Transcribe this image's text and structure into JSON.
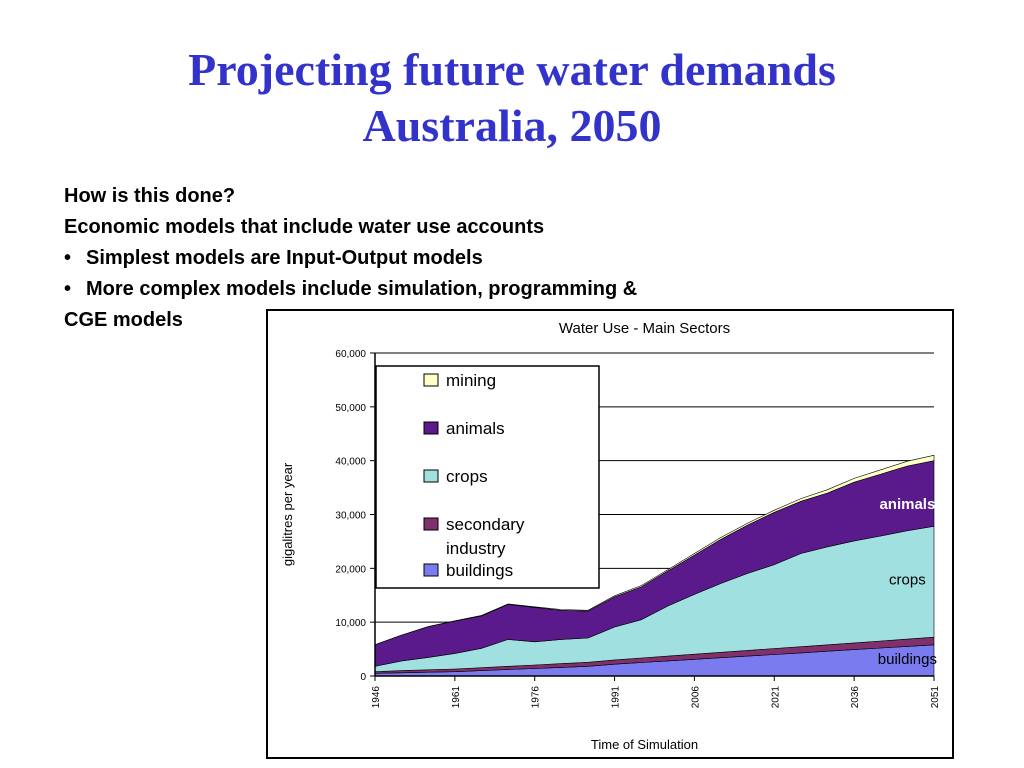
{
  "slide": {
    "title_line1": "Projecting future water demands",
    "title_line2": "Australia, 2050",
    "lines": [
      {
        "bullet": "",
        "text": "How is this done?"
      },
      {
        "bullet": "",
        "text": "Economic models that include water use accounts"
      },
      {
        "bullet": "•",
        "text": "Simplest models are Input-Output models"
      },
      {
        "bullet": "•",
        "text": "More complex models include simulation, programming &"
      },
      {
        "bullet": "",
        "text": "CGE models"
      }
    ]
  },
  "chart_data": {
    "type": "area",
    "stacked": true,
    "title": "Water Use - Main Sectors",
    "xlabel": "Time of Simulation",
    "ylabel": "gigalitres per year",
    "ylim": [
      0,
      60000
    ],
    "y_ticks": [
      "0",
      "10,000",
      "20,000",
      "30,000",
      "40,000",
      "50,000",
      "60,000"
    ],
    "x_ticks": [
      "1946",
      "1961",
      "1976",
      "1991",
      "2006",
      "2021",
      "2036",
      "2051"
    ],
    "x": [
      1946,
      1951,
      1956,
      1961,
      1966,
      1971,
      1976,
      1981,
      1986,
      1991,
      1996,
      2001,
      2006,
      2011,
      2016,
      2021,
      2026,
      2031,
      2036,
      2041,
      2046,
      2051
    ],
    "series": [
      {
        "name": "buildings",
        "color": "#7b7bf0",
        "values": [
          500,
          600,
          700,
          800,
          1000,
          1200,
          1400,
          1600,
          1800,
          2200,
          2500,
          2800,
          3100,
          3400,
          3700,
          4000,
          4300,
          4600,
          4900,
          5200,
          5500,
          5800
        ]
      },
      {
        "name": "secondary industry",
        "color": "#80306a",
        "values": [
          300,
          400,
          450,
          500,
          550,
          600,
          650,
          700,
          750,
          800,
          850,
          900,
          950,
          1000,
          1050,
          1100,
          1150,
          1200,
          1250,
          1300,
          1350,
          1400
        ]
      },
      {
        "name": "crops",
        "color": "#a0e0e0",
        "values": [
          1000,
          1800,
          2300,
          2900,
          3600,
          5000,
          4300,
          4500,
          4500,
          6100,
          7100,
          9300,
          11100,
          12800,
          14300,
          15600,
          17300,
          18200,
          18950,
          19500,
          20150,
          20600
        ]
      },
      {
        "name": "animals",
        "color": "#5a1a8c",
        "values": [
          4000,
          4800,
          5700,
          6000,
          6000,
          6500,
          6400,
          5400,
          5000,
          5600,
          6100,
          6500,
          7300,
          8200,
          9000,
          9700,
          9700,
          10000,
          10900,
          11500,
          12000,
          12200
        ]
      },
      {
        "name": "mining",
        "color": "#ffffc8",
        "values": [
          0,
          0,
          50,
          50,
          100,
          100,
          100,
          150,
          150,
          200,
          250,
          250,
          300,
          350,
          350,
          400,
          500,
          600,
          700,
          800,
          900,
          1000
        ]
      }
    ],
    "legend": {
      "placement": "top-left",
      "entries": [
        {
          "label": "mining",
          "color": "#ffffc8"
        },
        {
          "label": "animals",
          "color": "#5a1a8c"
        },
        {
          "label": "crops",
          "color": "#a0e0e0"
        },
        {
          "label": "secondary industry",
          "color": "#80306a"
        },
        {
          "label": "buildings",
          "color": "#7b7bf0"
        }
      ]
    },
    "annotations": [
      {
        "text": "animals",
        "x": 2046,
        "y": 31000,
        "color": "#ffffff"
      },
      {
        "text": "crops",
        "x": 2046,
        "y": 17000,
        "color": "#000000"
      },
      {
        "text": "buildings",
        "x": 2046,
        "y": 2200,
        "color": "#000000"
      }
    ],
    "grid": true
  }
}
